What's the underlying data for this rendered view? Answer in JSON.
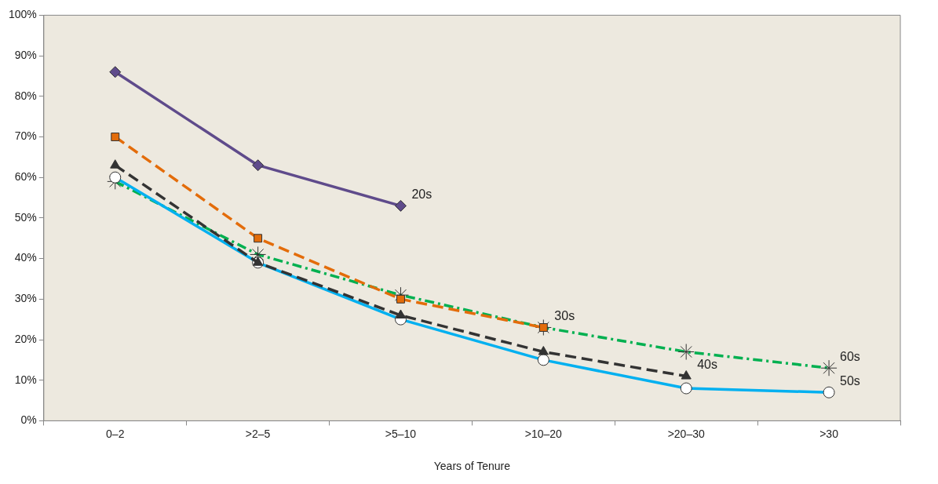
{
  "chart_data": {
    "type": "line",
    "xlabel": "Years of Tenure",
    "categories": [
      "0–2",
      ">2–5",
      ">5–10",
      ">10–20",
      ">20–30",
      ">30"
    ],
    "ylim": [
      0,
      100
    ],
    "yticks": [
      {
        "value": 0,
        "label": "0%"
      },
      {
        "value": 10,
        "label": "10%"
      },
      {
        "value": 20,
        "label": "20%"
      },
      {
        "value": 30,
        "label": "30%"
      },
      {
        "value": 40,
        "label": "40%"
      },
      {
        "value": 50,
        "label": "50%"
      },
      {
        "value": 60,
        "label": "60%"
      },
      {
        "value": 70,
        "label": "70%"
      },
      {
        "value": 80,
        "label": "80%"
      },
      {
        "value": 90,
        "label": "90%"
      },
      {
        "value": 100,
        "label": "100%"
      }
    ],
    "grid": false,
    "legend": false,
    "series": [
      {
        "name": "20s",
        "color": "#5f4b8b",
        "marker": "diamond",
        "line_style": "solid",
        "values": [
          86,
          63,
          53,
          null,
          null,
          null
        ]
      },
      {
        "name": "30s",
        "color": "#e36c0a",
        "marker": "square",
        "line_style": "dashed",
        "values": [
          70,
          45,
          30,
          23,
          null,
          null
        ]
      },
      {
        "name": "40s",
        "color": "#333333",
        "marker": "triangle",
        "line_style": "dashed",
        "values": [
          63,
          39,
          26,
          17,
          11,
          null
        ]
      },
      {
        "name": "50s",
        "color": "#00b0f0",
        "marker": "circle",
        "line_style": "solid",
        "values": [
          60,
          39,
          25,
          15,
          8,
          7
        ]
      },
      {
        "name": "60s",
        "color": "#00b050",
        "marker": "cross",
        "line_style": "dashdot",
        "values": [
          59,
          41,
          31,
          23,
          17,
          13
        ]
      }
    ]
  }
}
